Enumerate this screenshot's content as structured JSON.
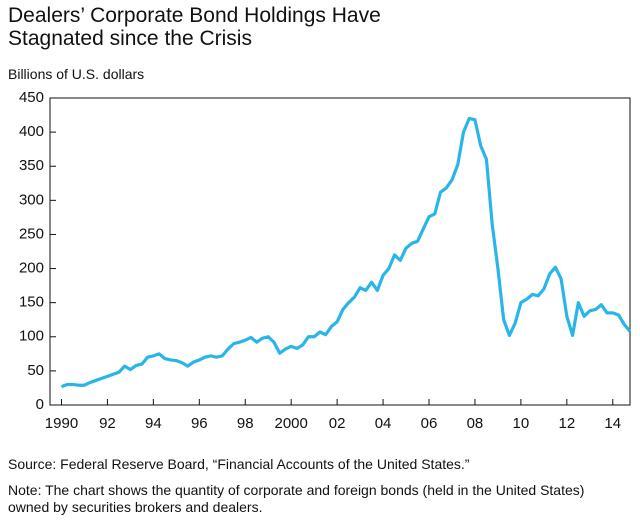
{
  "chart_data": {
    "type": "line",
    "title": "Dealers’ Corporate Bond Holdings Have Stagnated since the Crisis",
    "y_label": "Billions of U.S. dollars",
    "source": "Source: Federal Reserve Board, “Financial Accounts of the United States.”",
    "note": "Note: The chart shows the quantity of corporate and foreign bonds (held in the United States) owned by securities brokers and dealers.",
    "xlim": [
      1989.5,
      2014.75
    ],
    "xticks": [
      1990,
      {
        "value": 1992,
        "label": "92"
      },
      {
        "value": 1994,
        "label": "94"
      },
      {
        "value": 1996,
        "label": "96"
      },
      {
        "value": 1998,
        "label": "98"
      },
      2000,
      {
        "value": 2002,
        "label": "02"
      },
      {
        "value": 2004,
        "label": "04"
      },
      {
        "value": 2006,
        "label": "06"
      },
      {
        "value": 2008,
        "label": "08"
      },
      {
        "value": 2010,
        "label": "10"
      },
      {
        "value": 2012,
        "label": "12"
      },
      {
        "value": 2014,
        "label": "14"
      }
    ],
    "ylim": [
      0,
      450
    ],
    "yticks": [
      0,
      50,
      100,
      150,
      200,
      250,
      300,
      350,
      400,
      450
    ],
    "grid": false,
    "x": [
      1990,
      1990.25,
      1990.5,
      1990.75,
      1991,
      1991.25,
      1991.5,
      1991.75,
      1992,
      1992.25,
      1992.5,
      1992.75,
      1993,
      1993.25,
      1993.5,
      1993.75,
      1994,
      1994.25,
      1994.5,
      1994.75,
      1995,
      1995.25,
      1995.5,
      1995.75,
      1996,
      1996.25,
      1996.5,
      1996.75,
      1997,
      1997.25,
      1997.5,
      1997.75,
      1998,
      1998.25,
      1998.5,
      1998.75,
      1999,
      1999.25,
      1999.5,
      1999.75,
      2000,
      2000.25,
      2000.5,
      2000.75,
      2001,
      2001.25,
      2001.5,
      2001.75,
      2002,
      2002.25,
      2002.5,
      2002.75,
      2003,
      2003.25,
      2003.5,
      2003.75,
      2004,
      2004.25,
      2004.5,
      2004.75,
      2005,
      2005.25,
      2005.5,
      2005.75,
      2006,
      2006.25,
      2006.5,
      2006.75,
      2007,
      2007.25,
      2007.5,
      2007.75,
      2008,
      2008.25,
      2008.5,
      2008.75,
      2009,
      2009.25,
      2009.5,
      2009.75,
      2010,
      2010.25,
      2010.5,
      2010.75,
      2011,
      2011.25,
      2011.5,
      2011.75,
      2012,
      2012.25,
      2012.5,
      2012.75,
      2013,
      2013.25,
      2013.5,
      2013.75,
      2014,
      2014.25,
      2014.5,
      2014.75
    ],
    "series": [
      {
        "name": "Corporate bond holdings",
        "color": "#29b5e8",
        "values": [
          27,
          30,
          30,
          29,
          29,
          33,
          36,
          39,
          42,
          45,
          48,
          57,
          52,
          58,
          60,
          70,
          72,
          75,
          68,
          66,
          65,
          62,
          57,
          63,
          66,
          70,
          72,
          70,
          72,
          82,
          90,
          92,
          95,
          99,
          92,
          98,
          100,
          92,
          76,
          82,
          86,
          83,
          88,
          100,
          100,
          107,
          103,
          115,
          122,
          140,
          150,
          158,
          172,
          168,
          180,
          168,
          190,
          200,
          220,
          212,
          230,
          237,
          240,
          258,
          276,
          280,
          312,
          318,
          330,
          352,
          400,
          420,
          418,
          380,
          360,
          265,
          200,
          125,
          102,
          120,
          150,
          155,
          162,
          160,
          170,
          192,
          202,
          185,
          130,
          102,
          150,
          130,
          138,
          140,
          147,
          135,
          135,
          132,
          118,
          108
        ]
      }
    ]
  }
}
